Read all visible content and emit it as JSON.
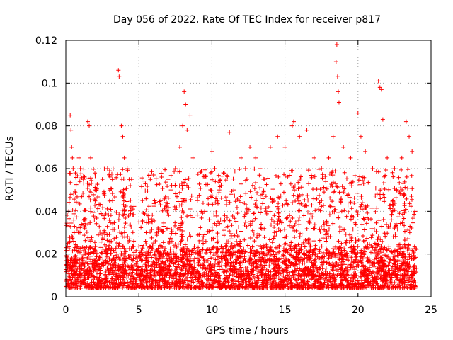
{
  "chart_data": {
    "type": "scatter",
    "title": "Day 056 of 2022, Rate Of TEC Index for receiver p817",
    "xlabel": "GPS time / hours",
    "ylabel": "ROTI / TECUs",
    "xlim": [
      0,
      25
    ],
    "ylim": [
      0,
      0.12
    ],
    "x_ticks": [
      "0",
      "5",
      "10",
      "15",
      "20",
      "25"
    ],
    "y_ticks": [
      "0",
      "0.02",
      "0.04",
      "0.06",
      "0.08",
      "0.1",
      "0.12"
    ],
    "grid": true,
    "marker": "plus",
    "color": "#ff0000",
    "series": [
      {
        "values_summary": "dense ROTI scatter over 0-24 h; baseline 0.005-0.02, frequent bursts to 0.04-0.08",
        "points": [
          [
            0.2,
            0.04
          ],
          [
            0.3,
            0.085
          ],
          [
            0.35,
            0.078
          ],
          [
            0.4,
            0.07
          ],
          [
            0.45,
            0.065
          ],
          [
            0.5,
            0.06
          ],
          [
            0.9,
            0.065
          ],
          [
            1.0,
            0.06
          ],
          [
            1.2,
            0.055
          ],
          [
            1.5,
            0.082
          ],
          [
            1.6,
            0.08
          ],
          [
            1.7,
            0.065
          ],
          [
            2.0,
            0.05
          ],
          [
            2.5,
            0.055
          ],
          [
            3.0,
            0.05
          ],
          [
            3.2,
            0.045
          ],
          [
            3.6,
            0.106
          ],
          [
            3.65,
            0.103
          ],
          [
            3.8,
            0.08
          ],
          [
            3.9,
            0.075
          ],
          [
            4.0,
            0.065
          ],
          [
            4.2,
            0.06
          ],
          [
            4.5,
            0.055
          ],
          [
            5.0,
            0.035
          ],
          [
            5.5,
            0.03
          ],
          [
            6.0,
            0.057
          ],
          [
            6.5,
            0.045
          ],
          [
            7.0,
            0.055
          ],
          [
            7.5,
            0.06
          ],
          [
            7.8,
            0.07
          ],
          [
            8.0,
            0.08
          ],
          [
            8.1,
            0.096
          ],
          [
            8.2,
            0.09
          ],
          [
            8.3,
            0.078
          ],
          [
            8.5,
            0.085
          ],
          [
            8.7,
            0.065
          ],
          [
            9.0,
            0.045
          ],
          [
            9.5,
            0.04
          ],
          [
            10.0,
            0.068
          ],
          [
            10.2,
            0.06
          ],
          [
            10.5,
            0.05
          ],
          [
            11.0,
            0.045
          ],
          [
            11.2,
            0.077
          ],
          [
            11.5,
            0.05
          ],
          [
            12.0,
            0.065
          ],
          [
            12.3,
            0.06
          ],
          [
            12.6,
            0.07
          ],
          [
            13.0,
            0.065
          ],
          [
            13.3,
            0.06
          ],
          [
            13.6,
            0.055
          ],
          [
            14.0,
            0.07
          ],
          [
            14.5,
            0.075
          ],
          [
            15.0,
            0.07
          ],
          [
            15.5,
            0.08
          ],
          [
            15.6,
            0.082
          ],
          [
            16.0,
            0.075
          ],
          [
            16.5,
            0.078
          ],
          [
            17.0,
            0.065
          ],
          [
            17.5,
            0.06
          ],
          [
            18.0,
            0.065
          ],
          [
            18.3,
            0.075
          ],
          [
            18.5,
            0.11
          ],
          [
            18.55,
            0.118
          ],
          [
            18.6,
            0.103
          ],
          [
            18.65,
            0.096
          ],
          [
            18.7,
            0.091
          ],
          [
            19.0,
            0.07
          ],
          [
            19.5,
            0.065
          ],
          [
            20.0,
            0.086
          ],
          [
            20.2,
            0.075
          ],
          [
            20.5,
            0.068
          ],
          [
            21.0,
            0.06
          ],
          [
            21.4,
            0.101
          ],
          [
            21.5,
            0.098
          ],
          [
            21.6,
            0.097
          ],
          [
            21.7,
            0.083
          ],
          [
            22.0,
            0.065
          ],
          [
            22.5,
            0.06
          ],
          [
            23.0,
            0.065
          ],
          [
            23.3,
            0.082
          ],
          [
            23.5,
            0.075
          ],
          [
            23.7,
            0.068
          ],
          [
            23.9,
            0.04
          ]
        ]
      }
    ]
  }
}
